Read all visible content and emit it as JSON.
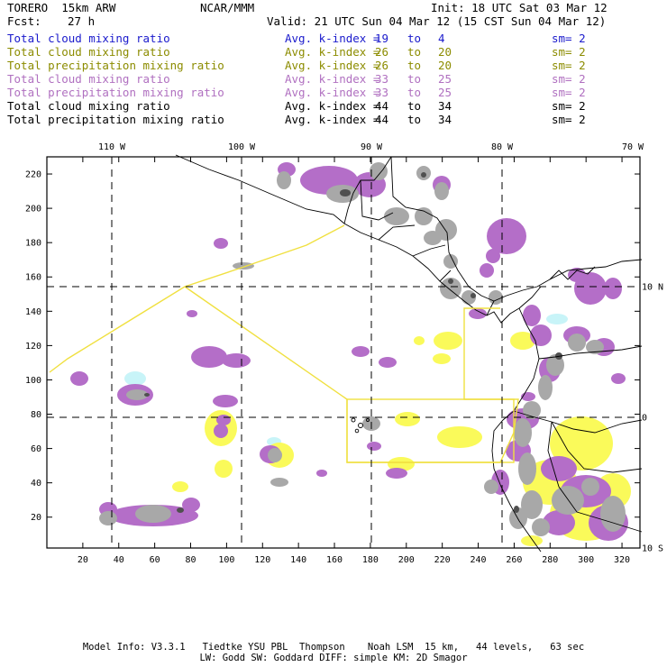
{
  "header": {
    "model": "TORERO  15km ARW",
    "institution": "NCAR/MMM",
    "init": "Init: 18 UTC Sat 03 Mar 12",
    "fcst_label": "Fcst:",
    "fcst_value": "27 h",
    "valid": "Valid: 21 UTC Sun 04 Mar 12 (15 CST Sun 04 Mar 12)"
  },
  "legend": [
    {
      "field": "Total cloud mixing ratio",
      "avg": "Avg. k-index =",
      "from": "19",
      "to_label": "to",
      "to": "4",
      "sm": "sm= 2",
      "color": "#1a1acc"
    },
    {
      "field": "Total cloud mixing ratio",
      "avg": "Avg. k-index =",
      "from": "26",
      "to_label": "to",
      "to": "20",
      "sm": "sm= 2",
      "color": "#8c8c00"
    },
    {
      "field": "Total precipitation mixing ratio",
      "avg": "Avg. k-index =",
      "from": "26",
      "to_label": "to",
      "to": "20",
      "sm": "sm= 2",
      "color": "#8c8c00"
    },
    {
      "field": "Total cloud mixing ratio",
      "avg": "Avg. k-index =",
      "from": "33",
      "to_label": "to",
      "to": "25",
      "sm": "sm= 2",
      "color": "#b070c0"
    },
    {
      "field": "Total precipitation mixing ratio",
      "avg": "Avg. k-index =",
      "from": "33",
      "to_label": "to",
      "to": "25",
      "sm": "sm= 2",
      "color": "#b070c0"
    },
    {
      "field": "Total cloud mixing ratio",
      "avg": "Avg. k-index =",
      "from": "44",
      "to_label": "to",
      "to": "34",
      "sm": "sm= 2",
      "color": "#000000"
    },
    {
      "field": "Total precipitation mixing ratio",
      "avg": "Avg. k-index =",
      "from": "44",
      "to_label": "to",
      "to": "34",
      "sm": "sm= 2",
      "color": "#000000"
    }
  ],
  "map": {
    "x_ticks": [
      20,
      40,
      60,
      80,
      100,
      120,
      140,
      160,
      180,
      200,
      220,
      240,
      260,
      280,
      300,
      320
    ],
    "y_ticks": [
      20,
      40,
      60,
      80,
      100,
      120,
      140,
      160,
      180,
      200,
      220
    ],
    "lon_labels": [
      "110 W",
      "100 W",
      "90 W",
      "80 W",
      "70 W"
    ],
    "lat_labels": [
      "10 N",
      "0",
      "10 S"
    ],
    "colors": {
      "light_cyan": "#c8f4f8",
      "yellow": "#fafa5a",
      "purple": "#b46ec8",
      "gray": "#a8a8a8",
      "dark_gray": "#505050",
      "domain_outline": "#f0e040",
      "coastline": "#000000"
    }
  },
  "footer": {
    "line1": "Model Info: V3.3.1   Tiedtke YSU PBL  Thompson    Noah LSM  15 km,   44 levels,   63 sec",
    "line2": "LW: Godd SW: Goddard DIFF: simple KM: 2D Smagor"
  }
}
